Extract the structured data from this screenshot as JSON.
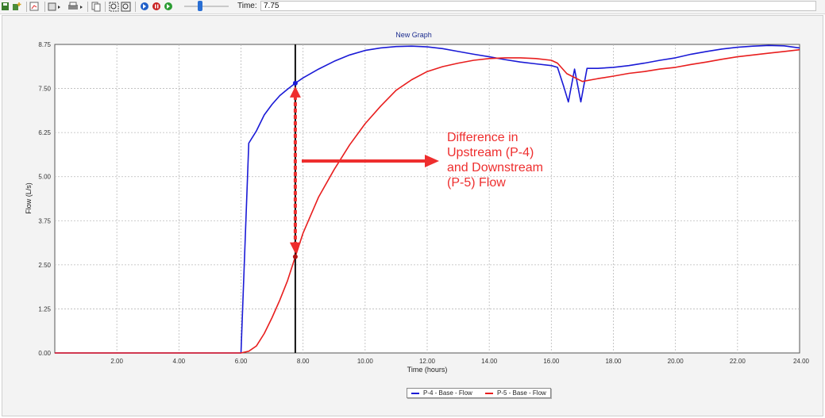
{
  "toolbar": {
    "time_label": "Time:",
    "time_value": "7.75",
    "icons": [
      "save-icon",
      "add-series-icon",
      "chart-options-icon",
      "export-icon",
      "print-icon",
      "copy-icon",
      "zoom-extents-icon",
      "zoom-window-icon",
      "play-icon",
      "pause-icon",
      "stop-icon"
    ]
  },
  "colors": {
    "p4": "#1a1ad6",
    "p5": "#e81e1e",
    "annotation": "#ee2e2e",
    "marker_line": "#111111",
    "grid": "#b9b9b9"
  },
  "annotation": {
    "lines": [
      "Difference in",
      "Upstream (P-4)",
      "and Downstream",
      "(P-5) Flow"
    ]
  },
  "chart_data": {
    "type": "line",
    "title": "New Graph",
    "xlabel": "Time (hours)",
    "ylabel": "Flow (L/s)",
    "xlim": [
      0,
      24
    ],
    "ylim": [
      0,
      8.75
    ],
    "x_ticks": [
      "2.00",
      "4.00",
      "6.00",
      "8.00",
      "10.00",
      "12.00",
      "14.00",
      "16.00",
      "18.00",
      "20.00",
      "22.00",
      "24.00"
    ],
    "y_ticks": [
      "0.00",
      "1.25",
      "2.50",
      "3.75",
      "5.00",
      "6.25",
      "7.50",
      "8.75"
    ],
    "grid": true,
    "legend_position": "bottom",
    "current_time": 7.75,
    "series": [
      {
        "name": "P-4 - Base - Flow",
        "points": [
          [
            0,
            0
          ],
          [
            6,
            0
          ],
          [
            6.25,
            5.95
          ],
          [
            6.5,
            6.3
          ],
          [
            6.75,
            6.75
          ],
          [
            7,
            7.05
          ],
          [
            7.25,
            7.3
          ],
          [
            7.5,
            7.48
          ],
          [
            7.75,
            7.65
          ],
          [
            8,
            7.8
          ],
          [
            8.5,
            8.05
          ],
          [
            9,
            8.27
          ],
          [
            9.5,
            8.45
          ],
          [
            10,
            8.58
          ],
          [
            10.5,
            8.65
          ],
          [
            11,
            8.69
          ],
          [
            11.5,
            8.7
          ],
          [
            12,
            8.68
          ],
          [
            12.5,
            8.63
          ],
          [
            13,
            8.55
          ],
          [
            13.5,
            8.47
          ],
          [
            14,
            8.4
          ],
          [
            14.5,
            8.32
          ],
          [
            15,
            8.25
          ],
          [
            15.5,
            8.2
          ],
          [
            16,
            8.15
          ],
          [
            16.2,
            8.1
          ],
          [
            16.4,
            7.55
          ],
          [
            16.55,
            7.12
          ],
          [
            16.75,
            8.05
          ],
          [
            16.95,
            7.12
          ],
          [
            17.15,
            8.07
          ],
          [
            17.5,
            8.07
          ],
          [
            18,
            8.1
          ],
          [
            18.5,
            8.15
          ],
          [
            19,
            8.22
          ],
          [
            19.5,
            8.3
          ],
          [
            20,
            8.37
          ],
          [
            20.5,
            8.47
          ],
          [
            21,
            8.55
          ],
          [
            21.5,
            8.62
          ],
          [
            22,
            8.67
          ],
          [
            22.5,
            8.7
          ],
          [
            23,
            8.72
          ],
          [
            23.5,
            8.71
          ],
          [
            24,
            8.65
          ]
        ]
      },
      {
        "name": "P-5 - Base - Flow",
        "points": [
          [
            0,
            0
          ],
          [
            6,
            0
          ],
          [
            6.25,
            0.05
          ],
          [
            6.5,
            0.2
          ],
          [
            6.75,
            0.55
          ],
          [
            7,
            1.0
          ],
          [
            7.25,
            1.5
          ],
          [
            7.5,
            2.05
          ],
          [
            7.75,
            2.73
          ],
          [
            8,
            3.4
          ],
          [
            8.5,
            4.42
          ],
          [
            9,
            5.2
          ],
          [
            9.5,
            5.9
          ],
          [
            10,
            6.5
          ],
          [
            10.5,
            7.0
          ],
          [
            11,
            7.45
          ],
          [
            11.5,
            7.75
          ],
          [
            12,
            7.98
          ],
          [
            12.5,
            8.12
          ],
          [
            13,
            8.22
          ],
          [
            13.5,
            8.3
          ],
          [
            14,
            8.35
          ],
          [
            14.5,
            8.37
          ],
          [
            15,
            8.37
          ],
          [
            15.5,
            8.35
          ],
          [
            16,
            8.3
          ],
          [
            16.2,
            8.22
          ],
          [
            16.5,
            7.92
          ],
          [
            17,
            7.7
          ],
          [
            17.5,
            7.78
          ],
          [
            18,
            7.85
          ],
          [
            18.5,
            7.93
          ],
          [
            19,
            7.98
          ],
          [
            19.5,
            8.05
          ],
          [
            20,
            8.1
          ],
          [
            20.5,
            8.18
          ],
          [
            21,
            8.25
          ],
          [
            21.5,
            8.33
          ],
          [
            22,
            8.4
          ],
          [
            22.5,
            8.45
          ],
          [
            23,
            8.5
          ],
          [
            23.5,
            8.55
          ],
          [
            24,
            8.6
          ]
        ]
      }
    ],
    "highlight_points": [
      [
        7.75,
        7.65
      ],
      [
        7.75,
        2.73
      ]
    ]
  }
}
